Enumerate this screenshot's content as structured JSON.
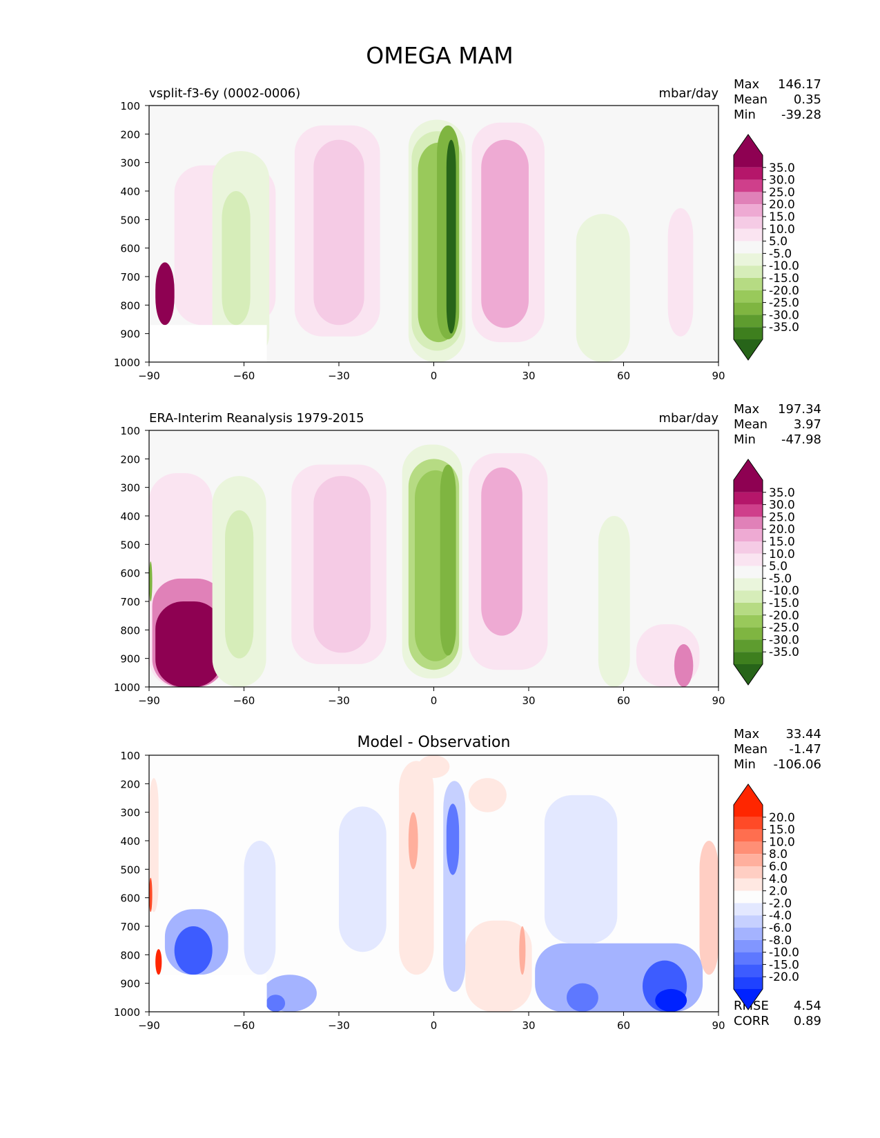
{
  "page": {
    "title": "OMEGA MAM"
  },
  "stat_labels": {
    "max": "Max",
    "mean": "Mean",
    "min": "Min",
    "rmse": "RMSE",
    "corr": "CORR"
  },
  "chart_data": [
    {
      "type": "heatmap",
      "title": "",
      "left_title": "vsplit-f3-6y (0002-0006)",
      "units": "mbar/day",
      "xlabel": "",
      "ylabel": "",
      "xlim": [
        -90,
        90
      ],
      "ylim": [
        1000,
        100
      ],
      "y_inverted": true,
      "x_ticks": [
        "−90",
        "−60",
        "−30",
        "0",
        "30",
        "60",
        "90"
      ],
      "y_ticks": [
        "100",
        "200",
        "300",
        "400",
        "500",
        "600",
        "700",
        "800",
        "900",
        "1000"
      ],
      "stats": {
        "max": "146.17",
        "mean": "0.35",
        "min": "-39.28"
      },
      "colorbar": {
        "labels": [
          "35.0",
          "30.0",
          "25.0",
          "20.0",
          "15.0",
          "10.0",
          "5.0",
          "-5.0",
          "-10.0",
          "-15.0",
          "-20.0",
          "-25.0",
          "-30.0",
          "-35.0"
        ],
        "over_color": "#8e0152",
        "colors": [
          "#b5166a",
          "#cf3f8b",
          "#e081b8",
          "#eeaad3",
          "#f5cbe5",
          "#fae4f1",
          "#f7f7f7",
          "#eaf5dc",
          "#d6edb9",
          "#b6db83",
          "#99c95b",
          "#7fb541",
          "#5e9c2f",
          "#3e7f1e"
        ],
        "under_color": "#276419"
      },
      "regions": [
        {
          "x": [
            -82,
            -50
          ],
          "p": [
            310,
            870
          ],
          "v": 7
        },
        {
          "x": [
            -88,
            -82
          ],
          "p": [
            650,
            870
          ],
          "v": 40
        },
        {
          "x": [
            -70,
            -52
          ],
          "p": [
            260,
            1000
          ],
          "v": -8
        },
        {
          "x": [
            -67,
            -58
          ],
          "p": [
            400,
            870
          ],
          "v": -14
        },
        {
          "x": [
            -44,
            -17
          ],
          "p": [
            170,
            910
          ],
          "v": 7
        },
        {
          "x": [
            -38,
            -22
          ],
          "p": [
            220,
            870
          ],
          "v": 12
        },
        {
          "x": [
            -8,
            10
          ],
          "p": [
            150,
            1000
          ],
          "v": -8
        },
        {
          "x": [
            -7,
            9
          ],
          "p": [
            190,
            960
          ],
          "v": -14
        },
        {
          "x": [
            -5,
            8
          ],
          "p": [
            230,
            930
          ],
          "v": -20
        },
        {
          "x": [
            1,
            8
          ],
          "p": [
            170,
            920
          ],
          "v": -26
        },
        {
          "x": [
            4,
            7
          ],
          "p": [
            220,
            900
          ],
          "v": -36
        },
        {
          "x": [
            12,
            35
          ],
          "p": [
            160,
            930
          ],
          "v": 7
        },
        {
          "x": [
            15,
            30
          ],
          "p": [
            220,
            880
          ],
          "v": 18
        },
        {
          "x": [
            45,
            62
          ],
          "p": [
            480,
            1000
          ],
          "v": -6
        },
        {
          "x": [
            74,
            82
          ],
          "p": [
            460,
            910
          ],
          "v": 6
        }
      ]
    },
    {
      "type": "heatmap",
      "title": "",
      "left_title": "ERA-Interim Reanalysis 1979-2015",
      "units": "mbar/day",
      "xlabel": "",
      "ylabel": "",
      "xlim": [
        -90,
        90
      ],
      "ylim": [
        1000,
        100
      ],
      "y_inverted": true,
      "x_ticks": [
        "−90",
        "−60",
        "−30",
        "0",
        "30",
        "60",
        "90"
      ],
      "y_ticks": [
        "100",
        "200",
        "300",
        "400",
        "500",
        "600",
        "700",
        "800",
        "900",
        "1000"
      ],
      "stats": {
        "max": "197.34",
        "mean": "3.97",
        "min": "-47.98"
      },
      "colorbar": {
        "labels": [
          "35.0",
          "30.0",
          "25.0",
          "20.0",
          "15.0",
          "10.0",
          "5.0",
          "-5.0",
          "-10.0",
          "-15.0",
          "-20.0",
          "-25.0",
          "-30.0",
          "-35.0"
        ],
        "over_color": "#8e0152",
        "colors": [
          "#b5166a",
          "#cf3f8b",
          "#e081b8",
          "#eeaad3",
          "#f5cbe5",
          "#fae4f1",
          "#f7f7f7",
          "#eaf5dc",
          "#d6edb9",
          "#b6db83",
          "#99c95b",
          "#7fb541",
          "#5e9c2f",
          "#3e7f1e"
        ],
        "under_color": "#276419"
      },
      "regions": [
        {
          "x": [
            -90,
            -70
          ],
          "p": [
            250,
            1000
          ],
          "v": 8
        },
        {
          "x": [
            -89,
            -66
          ],
          "p": [
            620,
            1000
          ],
          "v": 25
        },
        {
          "x": [
            -88,
            -67
          ],
          "p": [
            700,
            1000
          ],
          "v": 40
        },
        {
          "x": [
            -90,
            -89
          ],
          "p": [
            560,
            700
          ],
          "v": -25
        },
        {
          "x": [
            -70,
            -53
          ],
          "p": [
            260,
            1000
          ],
          "v": -8
        },
        {
          "x": [
            -66,
            -57
          ],
          "p": [
            380,
            900
          ],
          "v": -14
        },
        {
          "x": [
            -45,
            -15
          ],
          "p": [
            220,
            920
          ],
          "v": 7
        },
        {
          "x": [
            -38,
            -20
          ],
          "p": [
            260,
            880
          ],
          "v": 12
        },
        {
          "x": [
            -10,
            9
          ],
          "p": [
            150,
            970
          ],
          "v": -8
        },
        {
          "x": [
            -8,
            8
          ],
          "p": [
            200,
            940
          ],
          "v": -16
        },
        {
          "x": [
            -6,
            7
          ],
          "p": [
            240,
            910
          ],
          "v": -20
        },
        {
          "x": [
            2,
            7
          ],
          "p": [
            220,
            890
          ],
          "v": -26
        },
        {
          "x": [
            11,
            36
          ],
          "p": [
            180,
            940
          ],
          "v": 7
        },
        {
          "x": [
            15,
            28
          ],
          "p": [
            230,
            820
          ],
          "v": 18
        },
        {
          "x": [
            52,
            62
          ],
          "p": [
            400,
            1000
          ],
          "v": -6
        },
        {
          "x": [
            64,
            84
          ],
          "p": [
            780,
            1000
          ],
          "v": 8
        },
        {
          "x": [
            76,
            82
          ],
          "p": [
            850,
            1000
          ],
          "v": 22
        }
      ]
    },
    {
      "type": "heatmap",
      "title": "Model - Observation",
      "left_title": "",
      "units": "",
      "xlabel": "",
      "ylabel": "",
      "xlim": [
        -90,
        90
      ],
      "ylim": [
        1000,
        100
      ],
      "y_inverted": true,
      "x_ticks": [
        "−90",
        "−60",
        "−30",
        "0",
        "30",
        "60",
        "90"
      ],
      "y_ticks": [
        "100",
        "200",
        "300",
        "400",
        "500",
        "600",
        "700",
        "800",
        "900",
        "1000"
      ],
      "stats": {
        "max": "33.44",
        "mean": "-1.47",
        "min": "-106.06",
        "rmse": "4.54",
        "corr": "0.89"
      },
      "colorbar": {
        "labels": [
          "20.0",
          "15.0",
          "10.0",
          "8.0",
          "6.0",
          "4.0",
          "2.0",
          "-2.0",
          "-4.0",
          "-6.0",
          "-8.0",
          "-10.0",
          "-15.0",
          "-20.0"
        ],
        "over_color": "#ff2600",
        "colors": [
          "#ff4a27",
          "#ff6e4f",
          "#ff8f76",
          "#ffaf9d",
          "#ffcec3",
          "#ffe8e2",
          "#fdfdfd",
          "#e3e8ff",
          "#c6d0ff",
          "#a4b3ff",
          "#8196ff",
          "#5e78ff",
          "#3d5cff",
          "#1f42ff"
        ],
        "under_color": "#0022ff"
      },
      "regions": [
        {
          "x": [
            -90,
            -87
          ],
          "p": [
            180,
            650
          ],
          "v": 4
        },
        {
          "x": [
            -90,
            -89
          ],
          "p": [
            530,
            650
          ],
          "v": 20
        },
        {
          "x": [
            -85,
            -65
          ],
          "p": [
            640,
            870
          ],
          "v": -6
        },
        {
          "x": [
            -82,
            -70
          ],
          "p": [
            700,
            870
          ],
          "v": -15
        },
        {
          "x": [
            -88,
            -86
          ],
          "p": [
            780,
            870
          ],
          "v": 25
        },
        {
          "x": [
            -60,
            -50
          ],
          "p": [
            400,
            870
          ],
          "v": -3
        },
        {
          "x": [
            -54,
            -37
          ],
          "p": [
            870,
            1000
          ],
          "v": -6
        },
        {
          "x": [
            -53,
            -47
          ],
          "p": [
            940,
            1000
          ],
          "v": -10
        },
        {
          "x": [
            -30,
            -15
          ],
          "p": [
            280,
            790
          ],
          "v": -3
        },
        {
          "x": [
            -11,
            0
          ],
          "p": [
            120,
            870
          ],
          "v": 4
        },
        {
          "x": [
            -8,
            -5
          ],
          "p": [
            300,
            500
          ],
          "v": 8
        },
        {
          "x": [
            -5,
            5
          ],
          "p": [
            100,
            180
          ],
          "v": 3
        },
        {
          "x": [
            3,
            10
          ],
          "p": [
            190,
            930
          ],
          "v": -5
        },
        {
          "x": [
            4,
            8
          ],
          "p": [
            270,
            520
          ],
          "v": -12
        },
        {
          "x": [
            11,
            23
          ],
          "p": [
            180,
            300
          ],
          "v": 3
        },
        {
          "x": [
            10,
            31
          ],
          "p": [
            680,
            1000
          ],
          "v": 4
        },
        {
          "x": [
            27,
            29
          ],
          "p": [
            700,
            870
          ],
          "v": 8
        },
        {
          "x": [
            32,
            85
          ],
          "p": [
            760,
            1000
          ],
          "v": -6
        },
        {
          "x": [
            42,
            52
          ],
          "p": [
            900,
            1000
          ],
          "v": -10
        },
        {
          "x": [
            66,
            80
          ],
          "p": [
            820,
            1000
          ],
          "v": -15
        },
        {
          "x": [
            70,
            80
          ],
          "p": [
            920,
            1000
          ],
          "v": -22
        },
        {
          "x": [
            35,
            58
          ],
          "p": [
            240,
            760
          ],
          "v": -3
        },
        {
          "x": [
            84,
            90
          ],
          "p": [
            400,
            870
          ],
          "v": 5
        }
      ]
    }
  ]
}
